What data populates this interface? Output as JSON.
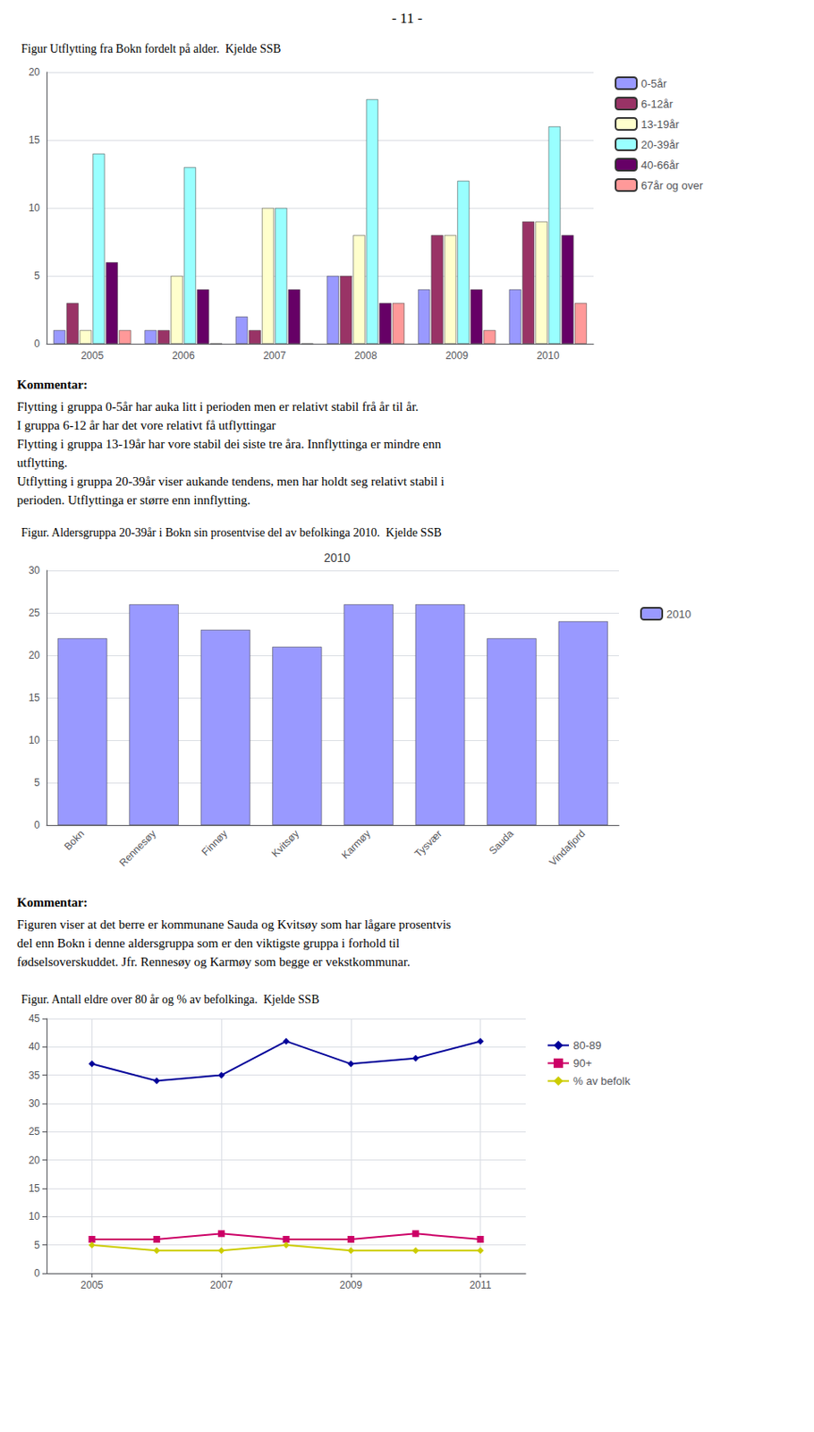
{
  "annotations": [
    "- 11 -"
  ],
  "chart_data": [
    {
      "type": "bar",
      "title": "Figur Utflytting fra Bokn fordelt på alder.  Kjelde SSB",
      "categories": [
        "2005",
        "2006",
        "2007",
        "2008",
        "2009",
        "2010"
      ],
      "series": [
        {
          "name": "0-5år",
          "color": "#9999FF",
          "values": [
            1,
            1,
            2,
            5,
            4,
            4
          ]
        },
        {
          "name": "6-12år",
          "color": "#993366",
          "values": [
            3,
            1,
            1,
            5,
            8,
            9
          ]
        },
        {
          "name": "13-19år",
          "color": "#FFFFCC",
          "values": [
            1,
            5,
            10,
            8,
            8,
            9
          ]
        },
        {
          "name": "20-39år",
          "color": "#99FFFF",
          "values": [
            14,
            13,
            10,
            18,
            12,
            16
          ]
        },
        {
          "name": "40-66år",
          "color": "#660066",
          "values": [
            6,
            4,
            4,
            3,
            4,
            8
          ]
        },
        {
          "name": "67år og over",
          "color": "#FF9999",
          "values": [
            1,
            0,
            0,
            3,
            1,
            3
          ]
        }
      ],
      "ylim": [
        0,
        20
      ],
      "yticks": [
        0,
        5,
        10,
        15,
        20
      ],
      "grid": true,
      "legend": "right",
      "annotations": [
        "Kommentar:",
        "Flytting i gruppa 0-5år har auka litt i perioden men er relativt stabil frå år til år.",
        "I gruppa 6-12 år har det vore relativt få utflyttingar",
        "Flytting i gruppa 13-19år har vore stabil dei siste tre åra. Innflyttinga er mindre enn",
        "utflytting.",
        "Utflytting i gruppa 20-39år viser aukande tendens, men har holdt seg relativt stabil i",
        "perioden. Utflyttinga er større enn innflytting."
      ]
    },
    {
      "type": "bar",
      "title": "Figur. Aldersgruppa 20-39år i Bokn sin prosentvise del av befolkinga 2010.  Kjelde SSB",
      "subtitle": "2010",
      "categories": [
        "Bokn",
        "Rennesøy",
        "Finnøy",
        "Kvitsøy",
        "Karmøy",
        "Tysvær",
        "Sauda",
        "Vindafjord"
      ],
      "series": [
        {
          "name": "2010",
          "color": "#9999FF",
          "values": [
            22,
            26,
            23,
            21,
            26,
            26,
            22,
            24
          ]
        }
      ],
      "ylim": [
        0,
        30
      ],
      "yticks": [
        0,
        5,
        10,
        15,
        20,
        25,
        30
      ],
      "grid": true,
      "legend": "right",
      "annotations": [
        "Kommentar:",
        "Figuren viser at det berre er kommunane Sauda og Kvitsøy som har lågare prosentvis",
        "del enn Bokn i denne aldersgruppa som er den viktigste gruppa i forhold til",
        "fødselsoverskuddet. Jfr. Rennesøy og Karmøy som begge er vekstkommunar."
      ]
    },
    {
      "type": "line",
      "title": "Figur. Antall eldre over 80 år og % av befolkinga.  Kjelde SSB",
      "x": [
        2005,
        2006,
        2007,
        2008,
        2009,
        2010,
        2011
      ],
      "series": [
        {
          "name": "80-89",
          "color": "#000099",
          "marker": "diamond",
          "values": [
            37,
            34,
            35,
            41,
            37,
            38,
            41
          ]
        },
        {
          "name": "90+",
          "color": "#CC0066",
          "marker": "square",
          "values": [
            6,
            6,
            7,
            6,
            6,
            7,
            6
          ]
        },
        {
          "name": "% av befolk",
          "color": "#CCCC00",
          "marker": "diamond",
          "values": [
            5,
            4,
            4,
            5,
            4,
            4,
            4
          ]
        }
      ],
      "xlim": [
        2004.3,
        2011.7
      ],
      "xticks": [
        2005,
        2007,
        2009,
        2011
      ],
      "ylim": [
        0,
        45
      ],
      "yticks": [
        0,
        5,
        10,
        15,
        20,
        25,
        30,
        35,
        40,
        45
      ],
      "grid": true,
      "legend": "right"
    }
  ]
}
